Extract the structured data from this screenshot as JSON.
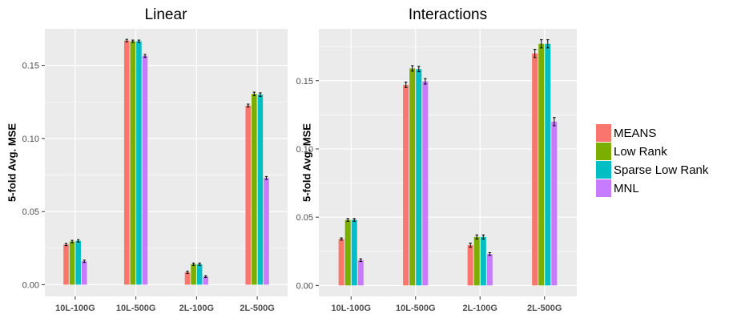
{
  "chart_data": [
    {
      "type": "bar",
      "title": "Linear",
      "xlabel": "",
      "ylabel": "5-fold Avg. MSE",
      "ylim": [
        -0.008,
        0.175
      ],
      "yticks": [
        0.0,
        0.05,
        0.1,
        0.15
      ],
      "ytick_labels": [
        "0.00",
        "0.05",
        "0.10",
        "0.15"
      ],
      "categories": [
        "10L-100G",
        "10L-500G",
        "2L-100G",
        "2L-500G"
      ],
      "grid": true,
      "series": [
        {
          "name": "MEANS",
          "values": [
            0.0275,
            0.167,
            0.0085,
            0.1225
          ],
          "errors": [
            0.0008,
            0.0008,
            0.0008,
            0.001
          ]
        },
        {
          "name": "Low Rank",
          "values": [
            0.0295,
            0.1665,
            0.014,
            0.1305
          ],
          "errors": [
            0.0008,
            0.0008,
            0.0008,
            0.0012
          ]
        },
        {
          "name": "Sparse Low Rank",
          "values": [
            0.03,
            0.1665,
            0.014,
            0.13
          ],
          "errors": [
            0.0008,
            0.0008,
            0.0008,
            0.0012
          ]
        },
        {
          "name": "MNL",
          "values": [
            0.016,
            0.1565,
            0.0055,
            0.073
          ],
          "errors": [
            0.0008,
            0.001,
            0.0006,
            0.001
          ]
        }
      ]
    },
    {
      "type": "bar",
      "title": "Interactions",
      "xlabel": "",
      "ylabel": "5-fold Avg. MSE",
      "ylim": [
        -0.008,
        0.188
      ],
      "yticks": [
        0.0,
        0.05,
        0.1,
        0.15
      ],
      "ytick_labels": [
        "0.00",
        "0.05",
        "0.10",
        "0.15"
      ],
      "categories": [
        "10L-100G",
        "10L-500G",
        "2L-100G",
        "2L-500G"
      ],
      "grid": true,
      "series": [
        {
          "name": "MEANS",
          "values": [
            0.034,
            0.147,
            0.0295,
            0.17
          ],
          "errors": [
            0.0008,
            0.002,
            0.0015,
            0.003
          ]
        },
        {
          "name": "Low Rank",
          "values": [
            0.048,
            0.159,
            0.0355,
            0.177
          ],
          "errors": [
            0.001,
            0.002,
            0.0015,
            0.003
          ]
        },
        {
          "name": "Sparse Low Rank",
          "values": [
            0.048,
            0.1585,
            0.0355,
            0.177
          ],
          "errors": [
            0.001,
            0.002,
            0.0015,
            0.003
          ]
        },
        {
          "name": "MNL",
          "values": [
            0.0185,
            0.1495,
            0.023,
            0.12
          ],
          "errors": [
            0.001,
            0.002,
            0.001,
            0.003
          ]
        }
      ]
    }
  ],
  "legend": {
    "placement": "right",
    "items": [
      "MEANS",
      "Low Rank",
      "Sparse Low Rank",
      "MNL"
    ]
  },
  "colors": {
    "MEANS": "#F8766D",
    "Low Rank": "#7CAE00",
    "Sparse Low Rank": "#00BFC4",
    "MNL": "#C77CFF",
    "panel_bg": "#EBEBEB",
    "grid": "#FFFFFF"
  }
}
